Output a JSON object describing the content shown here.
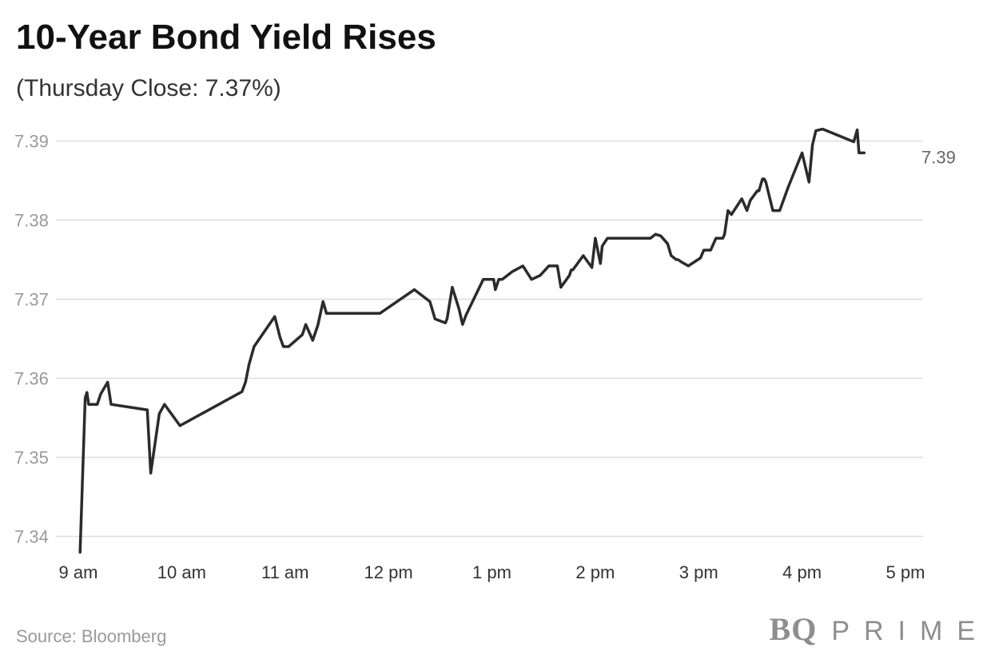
{
  "header": {
    "title": "10-Year Bond Yield Rises",
    "subtitle": "(Thursday Close: 7.37%)"
  },
  "footer": {
    "source": "Source: Bloomberg",
    "brand_bq": "BQ",
    "brand_prime": "PRIME"
  },
  "colors": {
    "line": "#2b2b2b",
    "grid": "#dddddd",
    "axis_text": "#9a9a9a",
    "x_text": "#333333"
  },
  "chart_data": {
    "type": "line",
    "title": "10-Year Bond Yield Rises",
    "subtitle": "(Thursday Close: 7.37%)",
    "xlabel": "",
    "ylabel": "",
    "xlim": [
      "9:00",
      "17:00"
    ],
    "ylim": [
      7.338,
      7.392
    ],
    "y_ticks": [
      7.34,
      7.35,
      7.36,
      7.37,
      7.38,
      7.39
    ],
    "y_tick_labels": [
      "7.34",
      "7.35",
      "7.36",
      "7.37",
      "7.38",
      "7.39"
    ],
    "x_ticks": [
      "9:00",
      "10:00",
      "11:00",
      "12:00",
      "13:00",
      "14:00",
      "15:00",
      "16:00",
      "17:00"
    ],
    "x_tick_labels": [
      "9 am",
      "10 am",
      "11 am",
      "12 pm",
      "1 pm",
      "2 pm",
      "3 pm",
      "4 pm",
      "5 pm"
    ],
    "grid": "horizontal",
    "end_label": "7.39",
    "series": [
      {
        "x": [
          "9:01",
          "9:04",
          "9:05",
          "9:06",
          "9:07",
          "9:11",
          "9:13",
          "9:17",
          "9:19",
          "9:40",
          "9:42",
          "9:44",
          "9:47",
          "9:50",
          "9:59",
          "10:35",
          "10:37",
          "10:39",
          "10:42",
          "10:54",
          "10:57",
          "10:59",
          "11:02",
          "11:10",
          "11:12",
          "11:16",
          "11:19",
          "11:22",
          "11:24",
          "11:28",
          "11:55",
          "12:15",
          "12:24",
          "12:27",
          "12:33",
          "12:34",
          "12:37",
          "12:41",
          "12:43",
          "12:45",
          "12:55",
          "13:00",
          "13:01",
          "13:02",
          "13:04",
          "13:05",
          "13:06",
          "13:12",
          "13:18",
          "13:23",
          "13:28",
          "13:33",
          "13:37",
          "13:38",
          "13:40",
          "13:45",
          "13:46",
          "13:47",
          "13:52",
          "13:53",
          "13:58",
          "14:00",
          "14:03",
          "14:04",
          "14:07",
          "14:10",
          "14:13",
          "14:14",
          "14:15",
          "14:16",
          "14:22",
          "14:32",
          "14:35",
          "14:38",
          "14:42",
          "14:44",
          "14:47",
          "14:48",
          "14:50",
          "14:54",
          "15:01",
          "15:03",
          "15:07",
          "15:10",
          "15:14",
          "15:15",
          "15:17",
          "15:19",
          "15:25",
          "15:28",
          "15:30",
          "15:34",
          "15:35",
          "15:37",
          "15:38",
          "15:39",
          "15:43",
          "15:45",
          "15:47",
          "15:52",
          "16:00",
          "16:04",
          "16:06",
          "16:08",
          "16:12",
          "16:30",
          "16:32",
          "16:33",
          "16:34",
          "16:35",
          "16:36"
        ],
        "values": [
          7.338,
          7.3575,
          7.3582,
          7.3567,
          7.3567,
          7.3567,
          7.358,
          7.3595,
          7.3567,
          7.356,
          7.348,
          7.351,
          7.3555,
          7.3567,
          7.354,
          7.3583,
          7.3595,
          7.3617,
          7.364,
          7.3678,
          7.3652,
          7.364,
          7.364,
          7.3655,
          7.3668,
          7.3648,
          7.3667,
          7.3697,
          7.3682,
          7.3682,
          7.3682,
          7.3712,
          7.3697,
          7.3675,
          7.367,
          7.3675,
          7.3715,
          7.3687,
          7.3668,
          7.368,
          7.3725,
          7.3725,
          7.3725,
          7.3712,
          7.3725,
          7.3725,
          7.3725,
          7.3735,
          7.3742,
          7.3725,
          7.373,
          7.3742,
          7.3742,
          7.3742,
          7.3715,
          7.373,
          7.3737,
          7.3737,
          7.3752,
          7.3755,
          7.374,
          7.3777,
          7.3745,
          7.3767,
          7.3777,
          7.3777,
          7.3777,
          7.3777,
          7.3777,
          7.3777,
          7.3777,
          7.3777,
          7.3782,
          7.378,
          7.377,
          7.3755,
          7.375,
          7.375,
          7.3747,
          7.3742,
          7.3752,
          7.3762,
          7.3762,
          7.3777,
          7.3777,
          7.3782,
          7.3812,
          7.3807,
          7.3827,
          7.3812,
          7.3825,
          7.3837,
          7.3837,
          7.3852,
          7.3852,
          7.3848,
          7.3812,
          7.3812,
          7.3812,
          7.3842,
          7.3885,
          7.3848,
          7.3895,
          7.3913,
          7.3915,
          7.3899,
          7.3914,
          7.3885,
          7.3885,
          7.3885,
          7.3885
        ]
      }
    ]
  }
}
